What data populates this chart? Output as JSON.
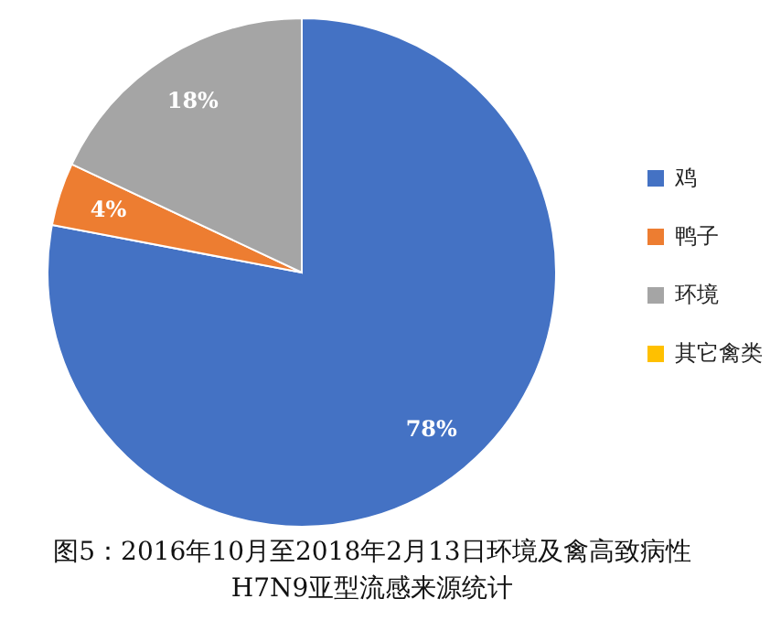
{
  "chart_data": {
    "type": "pie",
    "categories": [
      "鸡",
      "鸭子",
      "环境",
      "其它禽类"
    ],
    "values": [
      78,
      4,
      18,
      0
    ],
    "colors": [
      "#4472c4",
      "#ed7d31",
      "#a5a5a5",
      "#ffc000"
    ],
    "value_labels": [
      "78%",
      "4%",
      "18%",
      null
    ],
    "legend": "right",
    "annotations": [
      "图5：2016年10月至2018年2月13日环境及禽高致病性H7N9亚型流感来源统计"
    ]
  }
}
